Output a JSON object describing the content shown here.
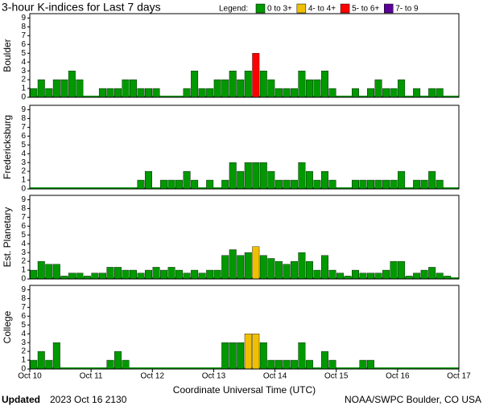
{
  "header": {
    "title": "3-hour K-indices for Last 7 days",
    "legend_label": "Legend:",
    "legend": [
      {
        "name": "0 to 3+",
        "color": "#009900"
      },
      {
        "name": "4- to 4+",
        "color": "#f0c000"
      },
      {
        "name": "5- to 6+",
        "color": "#ff0000"
      },
      {
        "name": "7- to 9",
        "color": "#5a0099"
      }
    ]
  },
  "chart_data": [
    {
      "type": "bar",
      "ylabel": "Boulder",
      "ylim": [
        0,
        9.5
      ],
      "yticks": [
        0,
        1,
        2,
        3,
        4,
        5,
        6,
        7,
        8,
        9
      ],
      "xlim": [
        0,
        7
      ],
      "values": [
        1,
        2,
        1,
        2,
        2,
        3,
        2,
        0,
        0,
        1,
        1,
        1,
        2,
        2,
        1,
        1,
        1,
        0,
        0,
        0,
        1,
        3,
        1,
        1,
        2,
        2,
        3,
        2,
        3,
        5,
        3,
        2,
        1,
        1,
        1,
        3,
        2,
        2,
        3,
        1,
        0,
        0,
        1,
        0,
        1,
        2,
        1,
        1,
        2,
        0,
        1,
        0,
        1,
        1,
        0,
        0
      ],
      "colors": [
        "#009900",
        "#009900",
        "#009900",
        "#009900",
        "#009900",
        "#009900",
        "#009900",
        "#009900",
        "#009900",
        "#009900",
        "#009900",
        "#009900",
        "#009900",
        "#009900",
        "#009900",
        "#009900",
        "#009900",
        "#009900",
        "#009900",
        "#009900",
        "#009900",
        "#009900",
        "#009900",
        "#009900",
        "#009900",
        "#009900",
        "#009900",
        "#009900",
        "#009900",
        "#ff0000",
        "#009900",
        "#009900",
        "#009900",
        "#009900",
        "#009900",
        "#009900",
        "#009900",
        "#009900",
        "#009900",
        "#009900",
        "#009900",
        "#009900",
        "#009900",
        "#009900",
        "#009900",
        "#009900",
        "#009900",
        "#009900",
        "#009900",
        "#009900",
        "#009900",
        "#009900",
        "#009900",
        "#009900",
        "#009900",
        "#009900"
      ]
    },
    {
      "type": "bar",
      "ylabel": "Fredericksburg",
      "ylim": [
        0,
        9.5
      ],
      "yticks": [
        0,
        1,
        2,
        3,
        4,
        5,
        6,
        7,
        8,
        9
      ],
      "xlim": [
        0,
        7
      ],
      "values": [
        0,
        0,
        0,
        0,
        0,
        0,
        0,
        0,
        0,
        0,
        0,
        0,
        0,
        0,
        1,
        2,
        0,
        1,
        1,
        1,
        2,
        1,
        0,
        1,
        0,
        1,
        3,
        2,
        3,
        3,
        3,
        2,
        1,
        1,
        1,
        3,
        2,
        1,
        2,
        1,
        0,
        0,
        1,
        1,
        1,
        1,
        1,
        1,
        2,
        0,
        1,
        1,
        2,
        1,
        0,
        0
      ],
      "colors": [
        "#009900",
        "#009900",
        "#009900",
        "#009900",
        "#009900",
        "#009900",
        "#009900",
        "#009900",
        "#009900",
        "#009900",
        "#009900",
        "#009900",
        "#009900",
        "#009900",
        "#009900",
        "#009900",
        "#009900",
        "#009900",
        "#009900",
        "#009900",
        "#009900",
        "#009900",
        "#009900",
        "#009900",
        "#009900",
        "#009900",
        "#009900",
        "#009900",
        "#009900",
        "#009900",
        "#009900",
        "#009900",
        "#009900",
        "#009900",
        "#009900",
        "#009900",
        "#009900",
        "#009900",
        "#009900",
        "#009900",
        "#009900",
        "#009900",
        "#009900",
        "#009900",
        "#009900",
        "#009900",
        "#009900",
        "#009900",
        "#009900",
        "#009900",
        "#009900",
        "#009900",
        "#009900",
        "#009900",
        "#009900",
        "#009900"
      ]
    },
    {
      "type": "bar",
      "ylabel": "Est. Planetary",
      "ylim": [
        0,
        9.5
      ],
      "yticks": [
        0,
        1,
        2,
        3,
        4,
        5,
        6,
        7,
        8,
        9
      ],
      "xlim": [
        0,
        7
      ],
      "values": [
        1,
        2,
        1.67,
        1.67,
        0.33,
        0.67,
        0.67,
        0.33,
        0.67,
        0.67,
        1.33,
        1.33,
        1,
        1,
        0.67,
        1,
        1.33,
        1,
        1.33,
        1,
        0.67,
        1,
        0.67,
        1,
        1,
        2.67,
        3.33,
        2.67,
        3,
        3.67,
        2.67,
        2.33,
        2,
        1.67,
        2,
        3,
        2,
        1,
        2.67,
        1,
        0.67,
        0.33,
        1,
        0.67,
        0.67,
        0.67,
        1,
        2,
        2,
        0.33,
        0.67,
        1,
        1.33,
        0.67,
        0.33,
        0
      ],
      "colors": [
        "#009900",
        "#009900",
        "#009900",
        "#009900",
        "#009900",
        "#009900",
        "#009900",
        "#009900",
        "#009900",
        "#009900",
        "#009900",
        "#009900",
        "#009900",
        "#009900",
        "#009900",
        "#009900",
        "#009900",
        "#009900",
        "#009900",
        "#009900",
        "#009900",
        "#009900",
        "#009900",
        "#009900",
        "#009900",
        "#009900",
        "#009900",
        "#009900",
        "#009900",
        "#f0c000",
        "#009900",
        "#009900",
        "#009900",
        "#009900",
        "#009900",
        "#009900",
        "#009900",
        "#009900",
        "#009900",
        "#009900",
        "#009900",
        "#009900",
        "#009900",
        "#009900",
        "#009900",
        "#009900",
        "#009900",
        "#009900",
        "#009900",
        "#009900",
        "#009900",
        "#009900",
        "#009900",
        "#009900",
        "#009900",
        "#009900"
      ]
    },
    {
      "type": "bar",
      "ylabel": "College",
      "ylim": [
        0,
        9.5
      ],
      "yticks": [
        0,
        1,
        2,
        3,
        4,
        5,
        6,
        7,
        8,
        9
      ],
      "xlim": [
        0,
        7
      ],
      "values": [
        1,
        2,
        1,
        3,
        0,
        0,
        0,
        0,
        0,
        0,
        1,
        2,
        1,
        0,
        0,
        0,
        0,
        0,
        0,
        0,
        0,
        0,
        0,
        0,
        0,
        3,
        3,
        3,
        4,
        4,
        3,
        1,
        1,
        1,
        1,
        3,
        1,
        0,
        2,
        1,
        0,
        0,
        0,
        1,
        1,
        0,
        0,
        0,
        0,
        0,
        0,
        0,
        0,
        0,
        0,
        0
      ],
      "colors": [
        "#009900",
        "#009900",
        "#009900",
        "#009900",
        "#009900",
        "#009900",
        "#009900",
        "#009900",
        "#009900",
        "#009900",
        "#009900",
        "#009900",
        "#009900",
        "#009900",
        "#009900",
        "#009900",
        "#009900",
        "#009900",
        "#009900",
        "#009900",
        "#009900",
        "#009900",
        "#009900",
        "#009900",
        "#009900",
        "#009900",
        "#009900",
        "#009900",
        "#f0c000",
        "#f0c000",
        "#009900",
        "#009900",
        "#009900",
        "#009900",
        "#009900",
        "#009900",
        "#009900",
        "#009900",
        "#009900",
        "#009900",
        "#009900",
        "#009900",
        "#009900",
        "#009900",
        "#009900",
        "#009900",
        "#009900",
        "#009900",
        "#009900",
        "#009900",
        "#009900",
        "#009900",
        "#009900",
        "#009900",
        "#009900",
        "#009900"
      ],
      "xticks": [
        {
          "value": 0,
          "label": "Oct 10"
        },
        {
          "value": 1,
          "label": "Oct 11"
        },
        {
          "value": 2,
          "label": "Oct 12"
        },
        {
          "value": 3,
          "label": "Oct 13"
        },
        {
          "value": 4,
          "label": "Oct 14"
        },
        {
          "value": 5,
          "label": "Oct 15"
        },
        {
          "value": 6,
          "label": "Oct 16"
        },
        {
          "value": 7,
          "label": "Oct 17"
        }
      ],
      "xlabel": "Coordinate Universal Time (UTC)"
    }
  ],
  "footer": {
    "updated_label": "Updated",
    "updated": "2023 Oct 16 2130",
    "credit": "NOAA/SWPC Boulder, CO USA"
  }
}
